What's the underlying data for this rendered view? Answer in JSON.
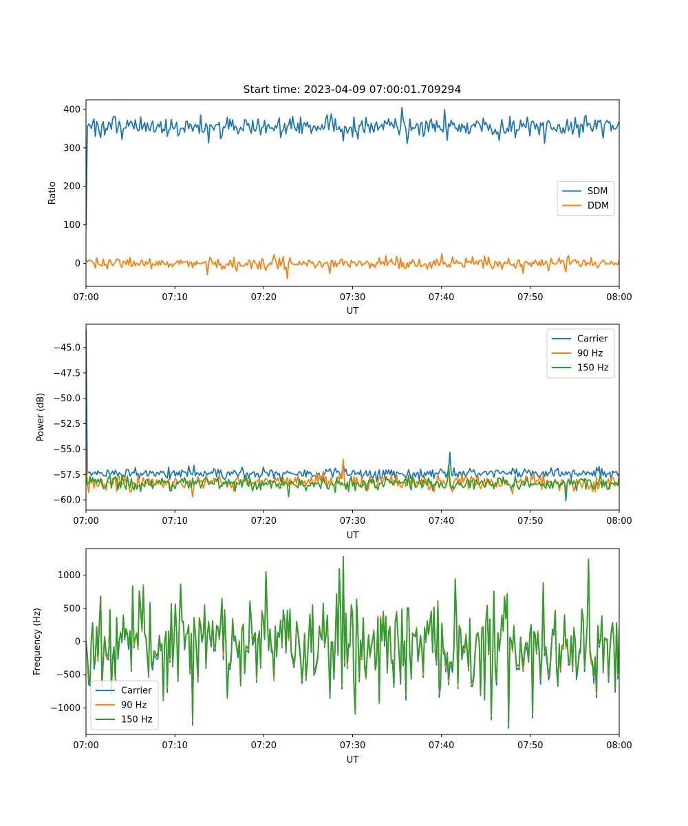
{
  "figure": {
    "title": "Start time: 2023-04-09 07:00:01.709294"
  },
  "chart_data": [
    {
      "type": "line",
      "title": "Start time: 2023-04-09 07:00:01.709294",
      "xlabel": "UT",
      "ylabel": "Ratio",
      "x_range": [
        "07:00",
        "08:00"
      ],
      "xticks": [
        "07:00",
        "07:10",
        "07:20",
        "07:30",
        "07:40",
        "07:50",
        "08:00"
      ],
      "ylim": [
        -60,
        425
      ],
      "yticks": [
        0,
        100,
        200,
        300,
        400
      ],
      "ytick_labels": [
        "0",
        "100",
        "200",
        "300",
        "400"
      ],
      "legend_position": "center-right",
      "series": [
        {
          "name": "SDM",
          "color": "#1f77b4",
          "start": 95,
          "mean": 355,
          "noise": 13,
          "spikes": [
            [
              35.5,
              405
            ],
            [
              36.2,
              312
            ],
            [
              40.3,
              400
            ],
            [
              13.8,
              313
            ],
            [
              4.1,
              322
            ],
            [
              51.6,
              312
            ],
            [
              29.0,
              318
            ]
          ]
        },
        {
          "name": "DDM",
          "color": "#ff7f0e",
          "start": 10,
          "mean": 0,
          "noise": 8,
          "spikes": [
            [
              22.6,
              -40
            ],
            [
              13.7,
              -30
            ],
            [
              40.1,
              25
            ],
            [
              27.5,
              -27
            ],
            [
              21.1,
              22
            ],
            [
              54.3,
              20
            ]
          ]
        }
      ]
    },
    {
      "type": "line",
      "xlabel": "UT",
      "ylabel": "Power (dB)",
      "x_range": [
        "07:00",
        "08:00"
      ],
      "xticks": [
        "07:00",
        "07:10",
        "07:20",
        "07:30",
        "07:40",
        "07:50",
        "08:00"
      ],
      "ylim": [
        -61,
        -42.7
      ],
      "yticks": [
        -60.0,
        -57.5,
        -55.0,
        -52.5,
        -50.0,
        -47.5,
        -45.0
      ],
      "ytick_labels": [
        "−60.0",
        "−57.5",
        "−55.0",
        "−52.5",
        "−50.0",
        "−47.5",
        "−45.0"
      ],
      "legend_position": "top-right",
      "series": [
        {
          "name": "Carrier",
          "color": "#1f77b4",
          "start": -43.2,
          "mean": -57.4,
          "noise": 0.25,
          "spikes": [
            [
              40.9,
              -55.3
            ],
            [
              28.9,
              -56.3
            ],
            [
              12.1,
              -56.6
            ]
          ]
        },
        {
          "name": "90 Hz",
          "color": "#ff7f0e",
          "start": -55.0,
          "mean": -58.3,
          "noise": 0.35,
          "spikes": [
            [
              28.9,
              -56.0
            ],
            [
              12.0,
              -59.7
            ],
            [
              40.8,
              -56.6
            ],
            [
              48.0,
              -59.4
            ]
          ]
        },
        {
          "name": "150 Hz",
          "color": "#2ca02c",
          "start": -57.8,
          "mean": -58.4,
          "noise": 0.35,
          "spikes": [
            [
              54.0,
              -60.1
            ],
            [
              22.8,
              -59.7
            ],
            [
              40.8,
              -56.6
            ]
          ]
        }
      ]
    },
    {
      "type": "line",
      "xlabel": "UT",
      "ylabel": "Frequency (Hz)",
      "x_range": [
        "07:00",
        "08:00"
      ],
      "xticks": [
        "07:00",
        "07:10",
        "07:20",
        "07:30",
        "07:40",
        "07:50",
        "08:00"
      ],
      "ylim": [
        -1400,
        1400
      ],
      "yticks": [
        -1000,
        -500,
        0,
        500,
        1000
      ],
      "ytick_labels": [
        "−1000",
        "−500",
        "0",
        "500",
        "1000"
      ],
      "legend_position": "lower-left",
      "series": [
        {
          "name": "Carrier",
          "color": "#1f77b4",
          "offset": -60,
          "mean": 0,
          "noise": 420,
          "spikes": [
            [
              12.0,
              -1260
            ],
            [
              29.0,
              1280
            ],
            [
              45.6,
              -1180
            ],
            [
              56.6,
              1240
            ],
            [
              20.2,
              1050
            ],
            [
              50.2,
              -1150
            ]
          ]
        },
        {
          "name": "90 Hz",
          "color": "#ff7f0e",
          "offset": -20,
          "mean": 0,
          "noise": 420,
          "spikes": [
            [
              12.0,
              -1200
            ],
            [
              29.0,
              1280
            ],
            [
              45.6,
              -1120
            ],
            [
              56.6,
              1240
            ],
            [
              20.2,
              1050
            ],
            [
              50.2,
              -1100
            ]
          ]
        },
        {
          "name": "150 Hz",
          "color": "#2ca02c",
          "offset": 0,
          "mean": 0,
          "noise": 420,
          "spikes": [
            [
              12.0,
              -1180
            ],
            [
              29.0,
              1280
            ],
            [
              45.6,
              -1100
            ],
            [
              56.6,
              1240
            ],
            [
              20.2,
              1050
            ],
            [
              50.2,
              -1080
            ]
          ]
        }
      ]
    }
  ]
}
